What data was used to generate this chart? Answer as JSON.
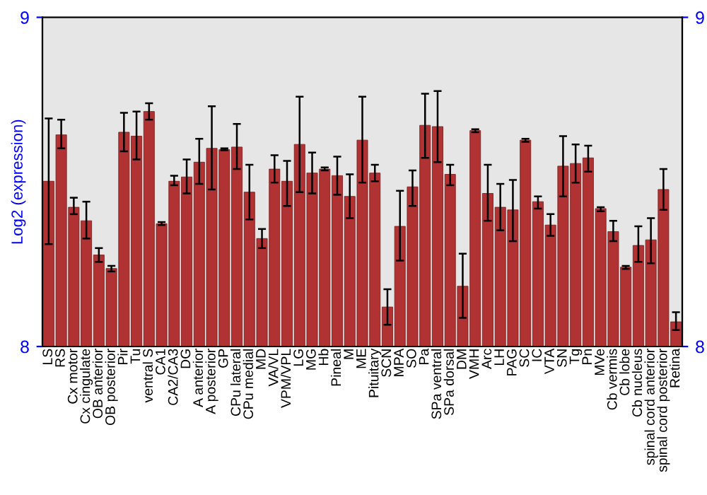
{
  "chart_data": {
    "type": "bar",
    "ylabel": "Log2 (expression)",
    "categories": [
      "LS",
      "RS",
      "Cx motor",
      "Cx cingulate",
      "OB anterior",
      "OB posterior",
      "Pir",
      "Tu",
      "ventral S",
      "CA1",
      "CA2/CA3",
      "DG",
      "A anterior",
      "A posterior",
      "GP",
      "CPu lateral",
      "CPu medial",
      "MD",
      "VA/VL",
      "VPM/VPL",
      "LG",
      "MG",
      "Hb",
      "Pineal",
      "M",
      "ME",
      "Pituitary",
      "SCN",
      "MPA",
      "SO",
      "Pa",
      "SPa ventral",
      "SPa dorsal",
      "DM",
      "VMH",
      "Arc",
      "LH",
      "PAG",
      "SC",
      "IC",
      "VTA",
      "SN",
      "Tg",
      "Pn",
      "MVe",
      "Cb vermis",
      "Cb lobe",
      "Cb nucleus",
      "spinal cord anterior",
      "spinal cord posterior",
      "Retina"
    ],
    "series": [
      {
        "color": "#b03232",
        "values": [
          8.502,
          8.643,
          8.423,
          8.382,
          8.278,
          8.237,
          8.651,
          8.639,
          8.714,
          8.373,
          8.502,
          8.515,
          8.56,
          8.602,
          8.598,
          8.606,
          8.469,
          8.328,
          8.539,
          8.502,
          8.614,
          8.527,
          8.539,
          8.519,
          8.456,
          8.627,
          8.527,
          8.12,
          8.365,
          8.485,
          8.672,
          8.668,
          8.523,
          8.183,
          8.656,
          8.465,
          8.423,
          8.415,
          8.627,
          8.44,
          8.369,
          8.548,
          8.556,
          8.573,
          8.419,
          8.349,
          8.241,
          8.307,
          8.324,
          8.477,
          8.075
        ],
        "errors": [
          [
            8.311,
            8.693
          ],
          [
            8.602,
            8.689
          ],
          [
            8.402,
            8.452
          ],
          [
            8.328,
            8.44
          ],
          [
            8.257,
            8.299
          ],
          [
            8.228,
            8.245
          ],
          [
            8.593,
            8.71
          ],
          [
            8.568,
            8.714
          ],
          [
            8.689,
            8.739
          ],
          [
            8.369,
            8.378
          ],
          [
            8.49,
            8.519
          ],
          [
            8.465,
            8.568
          ],
          [
            8.494,
            8.631
          ],
          [
            8.477,
            8.73
          ],
          [
            8.596,
            8.602
          ],
          [
            8.539,
            8.676
          ],
          [
            8.386,
            8.552
          ],
          [
            8.299,
            8.357
          ],
          [
            8.498,
            8.581
          ],
          [
            8.427,
            8.564
          ],
          [
            8.469,
            8.759
          ],
          [
            8.465,
            8.589
          ],
          [
            8.535,
            8.544
          ],
          [
            8.461,
            8.577
          ],
          [
            8.39,
            8.523
          ],
          [
            8.498,
            8.759
          ],
          [
            8.502,
            8.552
          ],
          [
            8.066,
            8.174
          ],
          [
            8.261,
            8.473
          ],
          [
            8.427,
            8.535
          ],
          [
            8.573,
            8.768
          ],
          [
            8.56,
            8.776
          ],
          [
            8.49,
            8.552
          ],
          [
            8.087,
            8.282
          ],
          [
            8.651,
            8.66
          ],
          [
            8.382,
            8.552
          ],
          [
            8.353,
            8.494
          ],
          [
            8.32,
            8.506
          ],
          [
            8.622,
            8.631
          ],
          [
            8.419,
            8.456
          ],
          [
            8.336,
            8.402
          ],
          [
            8.456,
            8.639
          ],
          [
            8.498,
            8.614
          ],
          [
            8.531,
            8.61
          ],
          [
            8.411,
            8.423
          ],
          [
            8.32,
            8.382
          ],
          [
            8.236,
            8.245
          ],
          [
            8.257,
            8.365
          ],
          [
            8.253,
            8.39
          ],
          [
            8.415,
            8.539
          ],
          [
            8.05,
            8.104
          ]
        ]
      }
    ],
    "ylim": [
      8,
      9
    ],
    "yticks": [
      8,
      9
    ],
    "y2lim": [
      8,
      9
    ],
    "y2ticks": [
      8,
      9
    ],
    "grid": false,
    "legend": false
  }
}
